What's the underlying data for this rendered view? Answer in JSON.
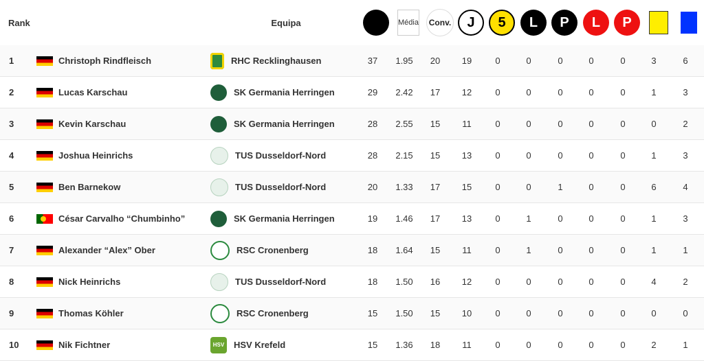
{
  "header": {
    "rank": "Rank",
    "equipa": "Equipa",
    "media": "Média",
    "conv": "Conv.",
    "j": "J",
    "five": "5",
    "l": "L",
    "p": "P"
  },
  "colors": {
    "black": "#000000",
    "red": "#ee1111",
    "yellow_card": "#ffee00",
    "blue_card": "#0033ff",
    "five_bg": "#ffe000"
  },
  "rows": [
    {
      "rank": "1",
      "flag": "de",
      "name": "Christoph Rindfleisch",
      "crest": "rhc",
      "team": "RHC Recklinghausen",
      "goals": "37",
      "media": "1.95",
      "conv": "20",
      "j": "19",
      "five": "0",
      "lb": "0",
      "pb": "0",
      "lr": "0",
      "pr": "0",
      "yellow": "3",
      "blue": "6"
    },
    {
      "rank": "2",
      "flag": "de",
      "name": "Lucas Karschau",
      "crest": "ger",
      "team": "SK Germania Herringen",
      "goals": "29",
      "media": "2.42",
      "conv": "17",
      "j": "12",
      "five": "0",
      "lb": "0",
      "pb": "0",
      "lr": "0",
      "pr": "0",
      "yellow": "1",
      "blue": "3"
    },
    {
      "rank": "3",
      "flag": "de",
      "name": "Kevin Karschau",
      "crest": "ger",
      "team": "SK Germania Herringen",
      "goals": "28",
      "media": "2.55",
      "conv": "15",
      "j": "11",
      "five": "0",
      "lb": "0",
      "pb": "0",
      "lr": "0",
      "pr": "0",
      "yellow": "0",
      "blue": "2"
    },
    {
      "rank": "4",
      "flag": "de",
      "name": "Joshua Heinrichs",
      "crest": "tus",
      "team": "TUS Dusseldorf-Nord",
      "goals": "28",
      "media": "2.15",
      "conv": "15",
      "j": "13",
      "five": "0",
      "lb": "0",
      "pb": "0",
      "lr": "0",
      "pr": "0",
      "yellow": "1",
      "blue": "3"
    },
    {
      "rank": "5",
      "flag": "de",
      "name": "Ben Barnekow",
      "crest": "tus",
      "team": "TUS Dusseldorf-Nord",
      "goals": "20",
      "media": "1.33",
      "conv": "17",
      "j": "15",
      "five": "0",
      "lb": "0",
      "pb": "1",
      "lr": "0",
      "pr": "0",
      "yellow": "6",
      "blue": "4"
    },
    {
      "rank": "6",
      "flag": "pt",
      "name": "César Carvalho “Chumbinho”",
      "crest": "ger",
      "team": "SK Germania Herringen",
      "goals": "19",
      "media": "1.46",
      "conv": "17",
      "j": "13",
      "five": "0",
      "lb": "1",
      "pb": "0",
      "lr": "0",
      "pr": "0",
      "yellow": "1",
      "blue": "3"
    },
    {
      "rank": "7",
      "flag": "de",
      "name": "Alexander “Alex” Ober",
      "crest": "rsc",
      "team": "RSC Cronenberg",
      "goals": "18",
      "media": "1.64",
      "conv": "15",
      "j": "11",
      "five": "0",
      "lb": "1",
      "pb": "0",
      "lr": "0",
      "pr": "0",
      "yellow": "1",
      "blue": "1"
    },
    {
      "rank": "8",
      "flag": "de",
      "name": "Nick Heinrichs",
      "crest": "tus",
      "team": "TUS Dusseldorf-Nord",
      "goals": "18",
      "media": "1.50",
      "conv": "16",
      "j": "12",
      "five": "0",
      "lb": "0",
      "pb": "0",
      "lr": "0",
      "pr": "0",
      "yellow": "4",
      "blue": "2"
    },
    {
      "rank": "9",
      "flag": "de",
      "name": "Thomas Köhler",
      "crest": "rsc",
      "team": "RSC Cronenberg",
      "goals": "15",
      "media": "1.50",
      "conv": "15",
      "j": "10",
      "five": "0",
      "lb": "0",
      "pb": "0",
      "lr": "0",
      "pr": "0",
      "yellow": "0",
      "blue": "0"
    },
    {
      "rank": "10",
      "flag": "de",
      "name": "Nik Fichtner",
      "crest": "hsv",
      "team": "HSV Krefeld",
      "crest_text": "HSV",
      "goals": "15",
      "media": "1.36",
      "conv": "18",
      "j": "11",
      "five": "0",
      "lb": "0",
      "pb": "0",
      "lr": "0",
      "pr": "0",
      "yellow": "2",
      "blue": "1"
    }
  ]
}
